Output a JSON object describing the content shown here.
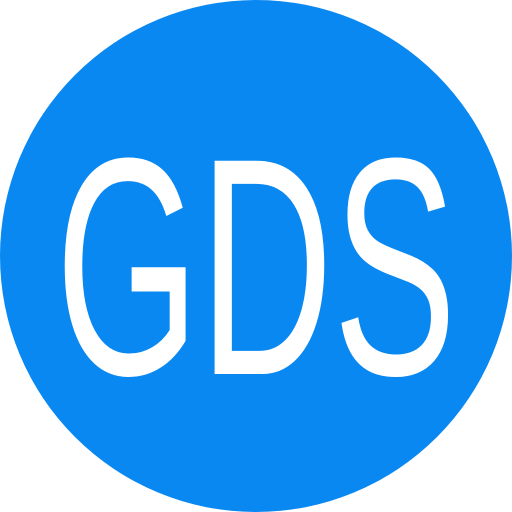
{
  "logo": {
    "text": "GDS",
    "background_color": "#0a88f2",
    "text_color": "#ffffff"
  }
}
